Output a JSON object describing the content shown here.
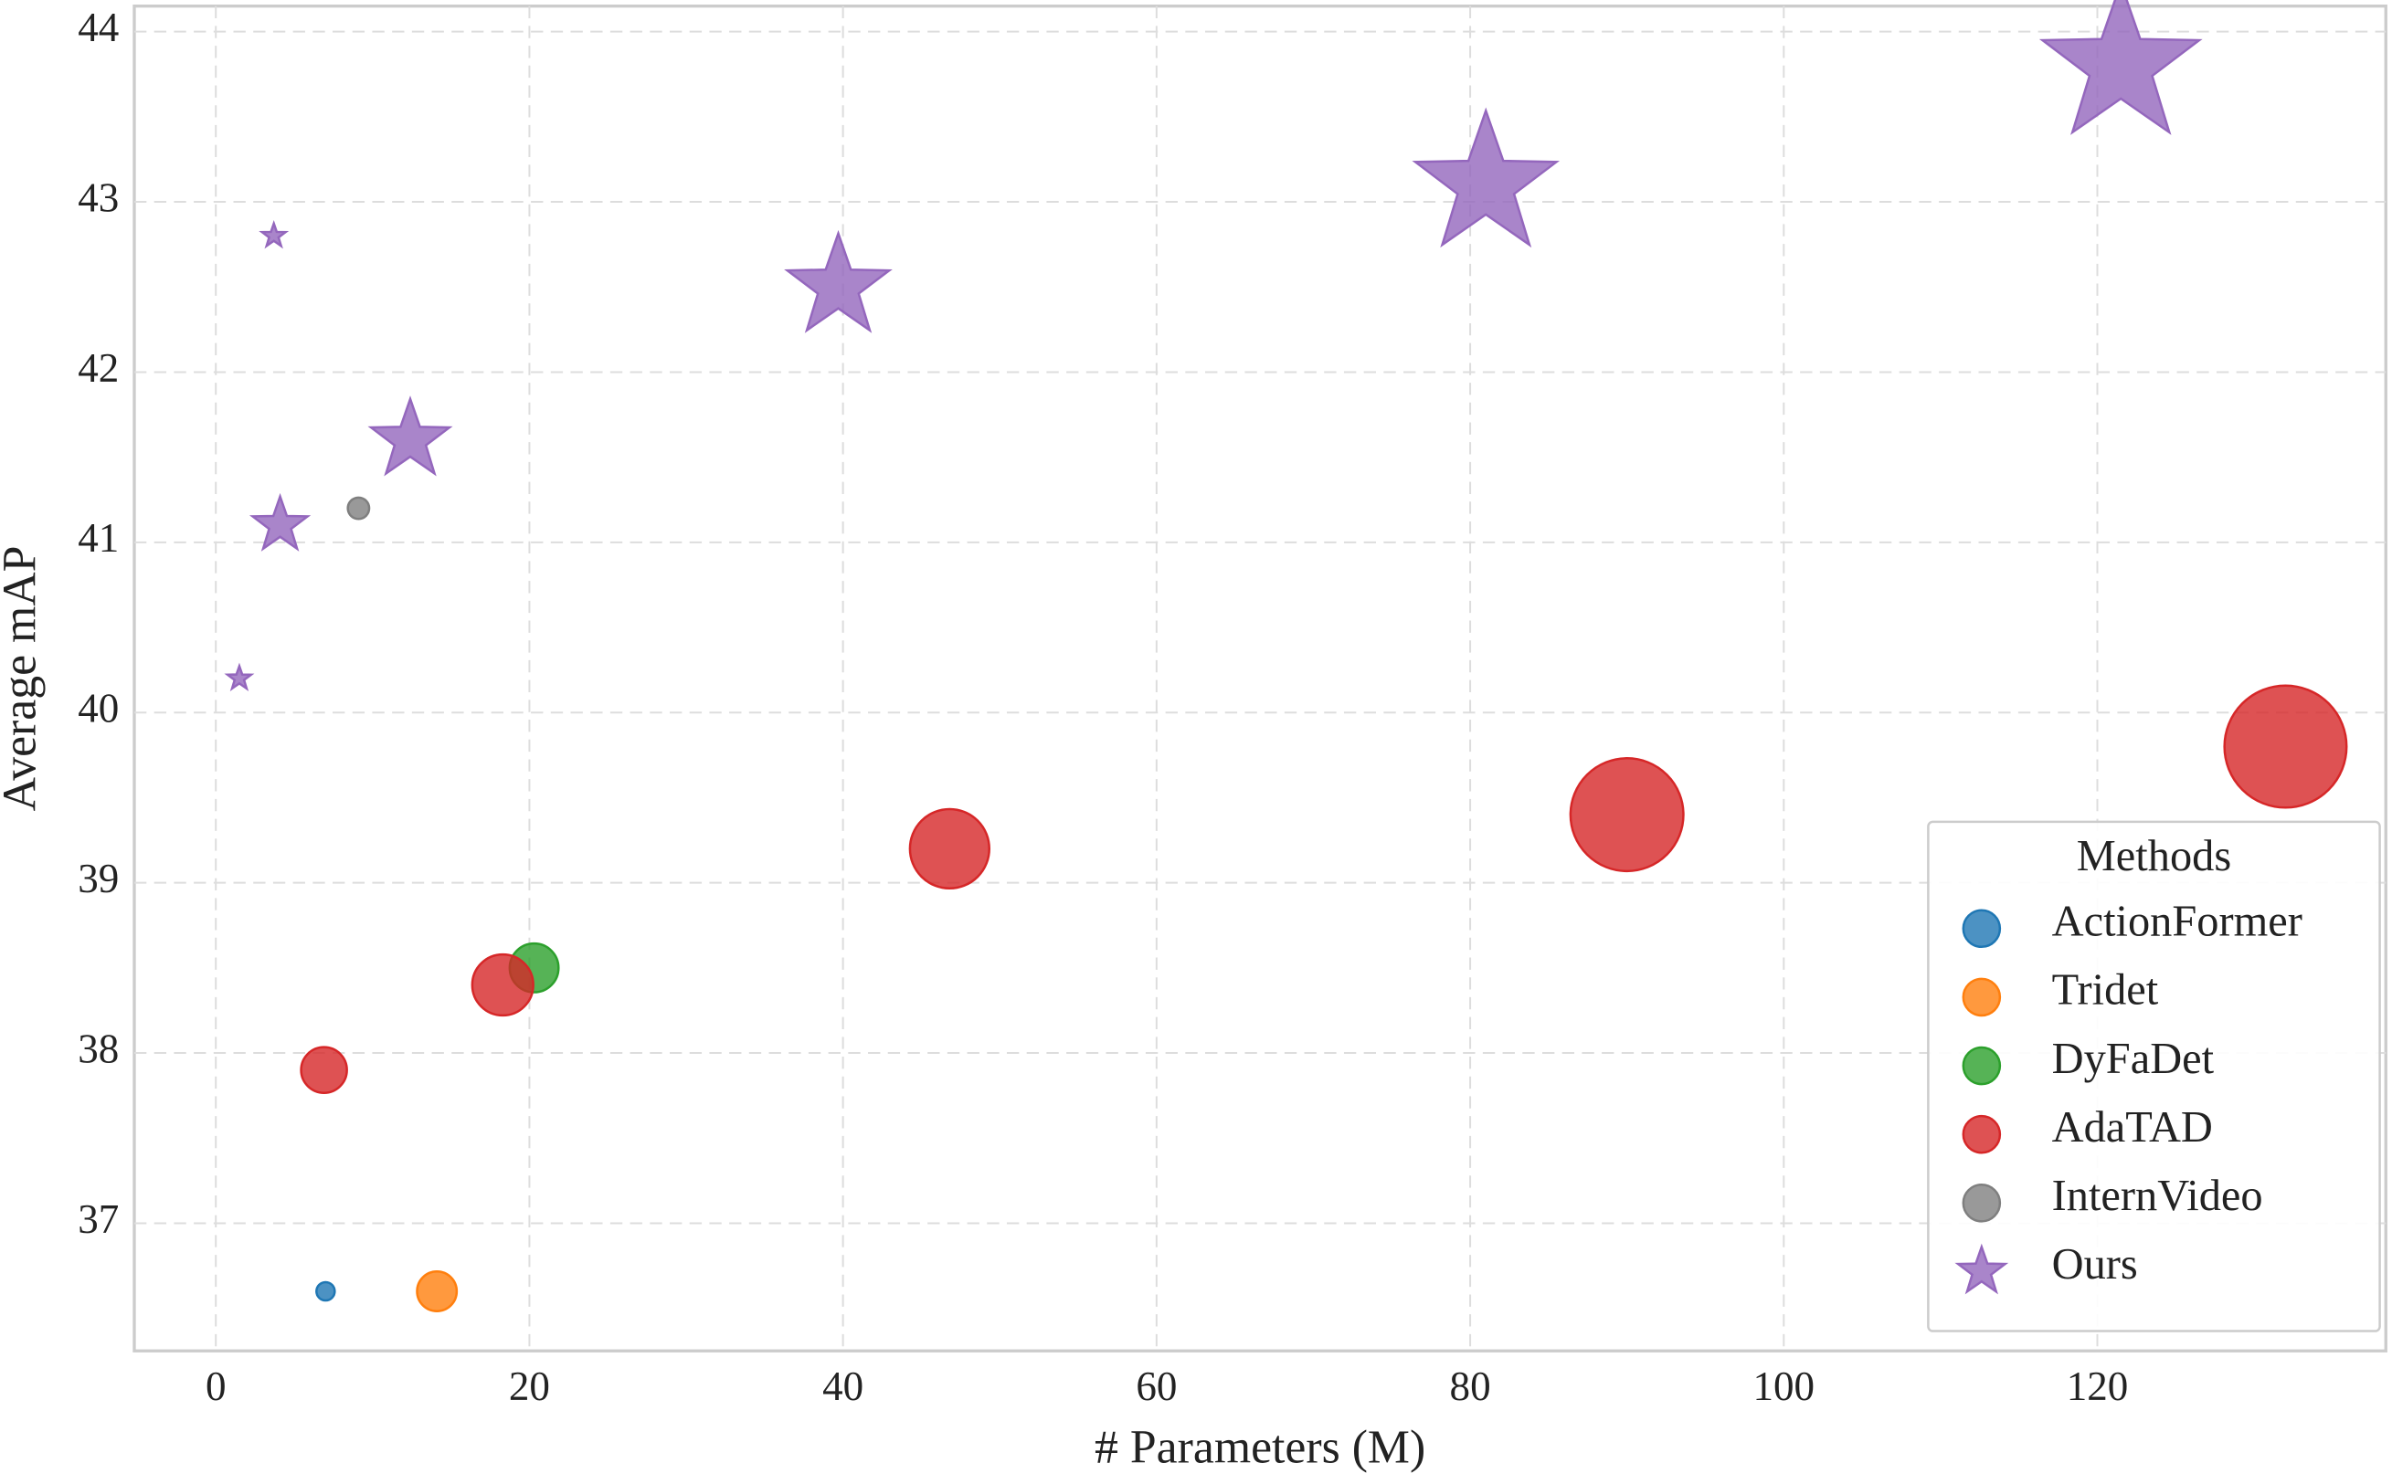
{
  "chart_data": {
    "type": "scatter",
    "xlabel": "# Parameters (M)",
    "ylabel": "Average mAP",
    "xlim": [
      -5.2,
      138.4
    ],
    "ylim": [
      36.25,
      44.15
    ],
    "xticks": [
      0,
      20,
      40,
      60,
      80,
      100,
      120
    ],
    "yticks": [
      37,
      38,
      39,
      40,
      41,
      42,
      43,
      44
    ],
    "grid": true,
    "legend_title": "Methods",
    "legend_position": "lower right",
    "series": [
      {
        "name": "ActionFormer",
        "color": "#1f77b4",
        "marker": "circle",
        "x": [
          7.0
        ],
        "y": [
          36.6
        ],
        "sizes": [
          36
        ]
      },
      {
        "name": "Tridet",
        "color": "#ff7f0e",
        "marker": "circle",
        "x": [
          14.1
        ],
        "y": [
          36.6
        ],
        "sizes": [
          169
        ]
      },
      {
        "name": "DyFaDet",
        "color": "#2ca02c",
        "marker": "circle",
        "x": [
          20.3
        ],
        "y": [
          38.5
        ],
        "sizes": [
          256
        ]
      },
      {
        "name": "AdaTAD",
        "color": "#d62728",
        "marker": "circle",
        "x": [
          6.9,
          18.3,
          46.8,
          90.0,
          132.0
        ],
        "y": [
          37.9,
          38.4,
          39.2,
          39.4,
          39.8
        ],
        "sizes": [
          225,
          400,
          676,
          1369,
          1600
        ]
      },
      {
        "name": "InternVideo",
        "color": "#7f7f7f",
        "marker": "circle",
        "x": [
          9.1
        ],
        "y": [
          41.2
        ],
        "sizes": [
          49
        ]
      },
      {
        "name": "Ours",
        "color": "#9467bd",
        "marker": "star",
        "x": [
          1.5,
          3.7,
          4.1,
          12.4,
          39.7,
          81.0,
          121.5
        ],
        "y": [
          40.2,
          42.8,
          41.1,
          41.6,
          42.5,
          43.1,
          43.8
        ],
        "sizes": [
          36,
          36,
          196,
          400,
          676,
          1296,
          1600
        ]
      }
    ]
  }
}
